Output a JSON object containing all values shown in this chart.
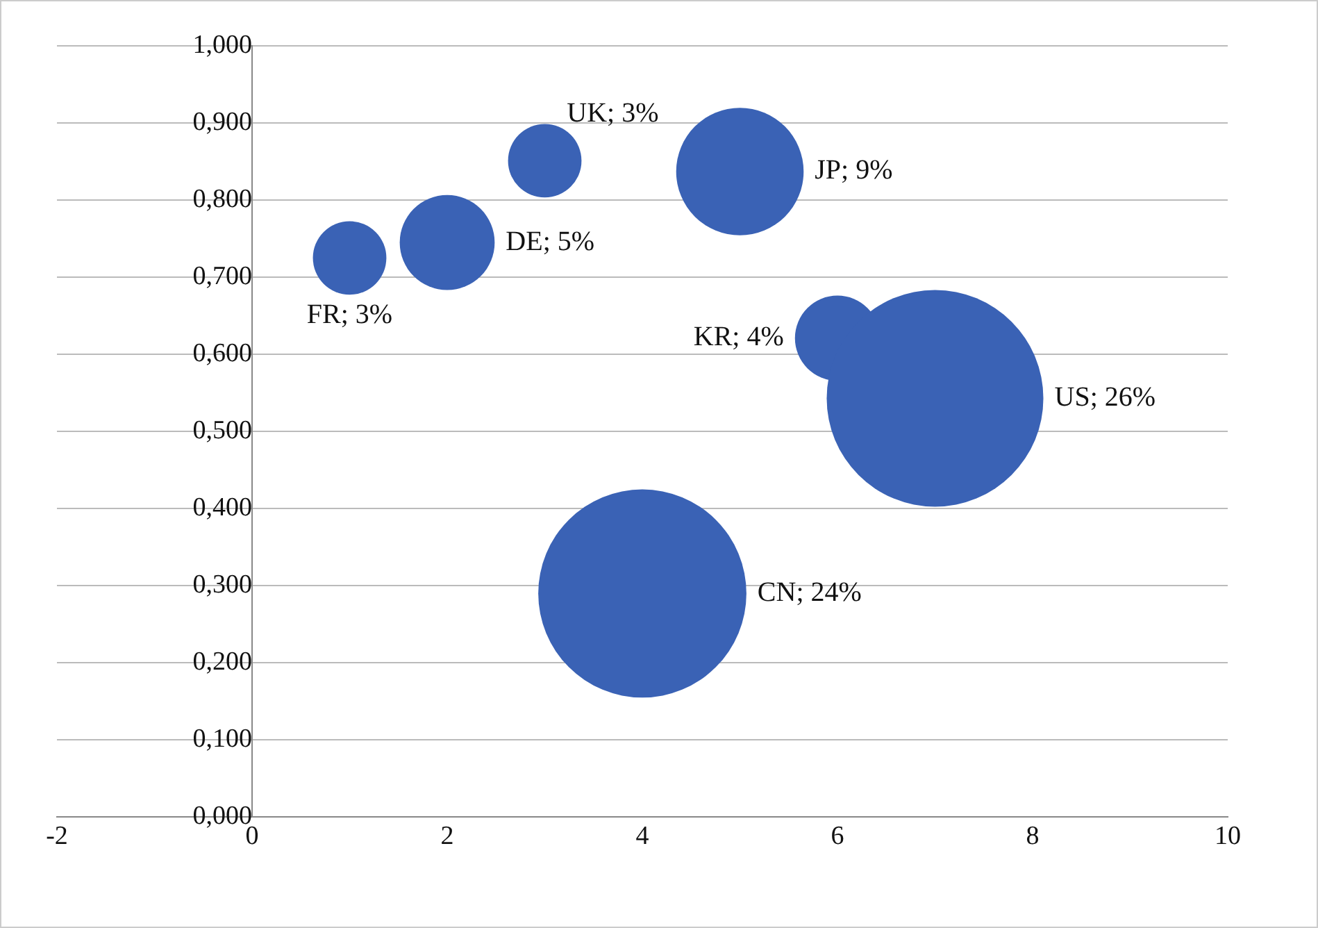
{
  "chart_data": {
    "type": "bubble",
    "x": [
      1,
      2,
      3,
      5,
      6,
      7,
      4
    ],
    "values": [
      0.725,
      0.745,
      0.851,
      0.837,
      0.621,
      0.543,
      0.29
    ],
    "sizes": [
      0.115,
      0.192,
      0.115,
      0.346,
      0.154,
      1,
      0.923
    ],
    "annotations": [
      "FR; 3%",
      "DE; 5%",
      "UK; 3%",
      "JP; 9%",
      "KR; 4%",
      "US; 26%",
      "CN; 24%"
    ],
    "color": "#3a62b5",
    "xlim": [
      -2,
      10
    ],
    "xticks": [
      -2,
      0,
      2,
      4,
      6,
      8,
      10
    ],
    "ylim": [
      0,
      1
    ],
    "yticks": [
      {
        "value": 0,
        "label": "0,000"
      },
      {
        "value": 0.1,
        "label": "0,100"
      },
      {
        "value": 0.2,
        "label": "0,200"
      },
      {
        "value": 0.3,
        "label": "0,300"
      },
      {
        "value": 0.4,
        "label": "0,400"
      },
      {
        "value": 0.5,
        "label": "0,500"
      },
      {
        "value": 0.6,
        "label": "0,600"
      },
      {
        "value": 0.7,
        "label": "0,700"
      },
      {
        "value": 0.8,
        "label": "0,800"
      },
      {
        "value": 0.9,
        "label": "0,900"
      },
      {
        "value": 1,
        "label": "1,000"
      }
    ],
    "grid": "y"
  }
}
